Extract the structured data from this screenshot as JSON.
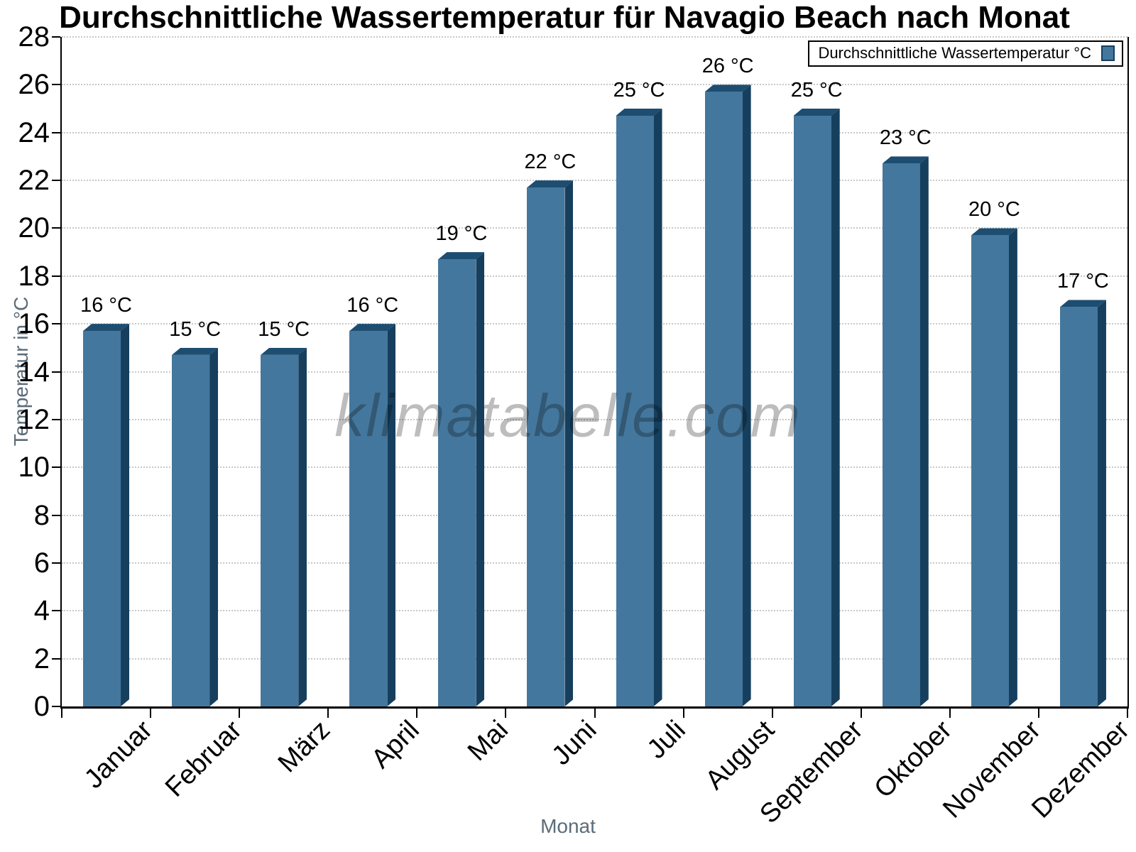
{
  "chart_data": {
    "type": "bar",
    "title": "Durchschnittliche Wassertemperatur für Navagio Beach nach Monat",
    "categories": [
      "Januar",
      "Februar",
      "März",
      "April",
      "Mai",
      "Juni",
      "Juli",
      "August",
      "September",
      "Oktober",
      "November",
      "Dezember"
    ],
    "values": [
      16,
      15,
      15,
      16,
      19,
      22,
      25,
      26,
      25,
      23,
      20,
      17
    ],
    "value_labels": [
      "16 °C",
      "15 °C",
      "15 °C",
      "16 °C",
      "19 °C",
      "22 °C",
      "25 °C",
      "26 °C",
      "25 °C",
      "23 °C",
      "20 °C",
      "17 °C"
    ],
    "unit": "°C",
    "xlabel": "Monat",
    "ylabel": "Temperatur in °C",
    "ylim": [
      0,
      28
    ],
    "ytick_step": 2,
    "grid": "horizontal-dotted",
    "legend": {
      "label": "Durchschnittliche Wassertemperatur °C",
      "position": "top-right"
    },
    "colors": {
      "bar": "#44779d",
      "bar_top": "#1d4d70",
      "bar_side": "#163f5e",
      "gridline": "#c8c8c8",
      "axis": "#000000",
      "axis_title": "#5b6c79",
      "tick_label": "#000000"
    }
  },
  "watermark": "klimatabelle.com"
}
